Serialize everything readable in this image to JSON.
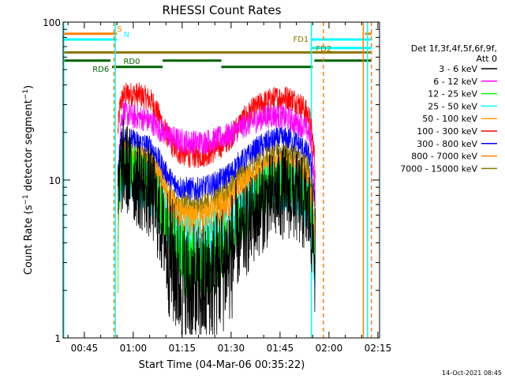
{
  "chart_data": {
    "type": "line",
    "title": "RHESSI Count Rates",
    "xlabel": "Start Time (04-Mar-06 00:35:22)",
    "ylabel": "Count Rate (s⁻¹ detector segment⁻¹)",
    "ylabel_main": "Count Rate (s",
    "ylabel_mid": " detector segment",
    "ylabel_end": ")",
    "ylabel_sup": "−1",
    "yscale": "log",
    "xlim": [
      38.5,
      135.5
    ],
    "ylim": [
      1,
      100
    ],
    "x_units": "minutes after 00:00 UT, 04-Mar-06",
    "x_ticks": [
      {
        "value": 45,
        "label": "00:45"
      },
      {
        "value": 60,
        "label": "01:00"
      },
      {
        "value": 75,
        "label": "01:15"
      },
      {
        "value": 90,
        "label": "01:30"
      },
      {
        "value": 105,
        "label": "01:45"
      },
      {
        "value": 120,
        "label": "02:00"
      },
      {
        "value": 135,
        "label": "02:15"
      }
    ],
    "y_ticks": [
      {
        "value": 1,
        "label": "1"
      },
      {
        "value": 10,
        "label": "10"
      },
      {
        "value": 100,
        "label": "100"
      }
    ],
    "legend_header": [
      "Det 1f,3f,4f,5f,6f,9f,",
      "Att 0"
    ],
    "legend_position": "right",
    "series": [
      {
        "name": "3 - 6 keV",
        "color": "#000000",
        "x": [
          55.3,
          56,
          57,
          58,
          60,
          62,
          64,
          66,
          68,
          70,
          72,
          74,
          76,
          78,
          80,
          82,
          84,
          86,
          88,
          90,
          92,
          94,
          96,
          98,
          100,
          102,
          104,
          106,
          108,
          110,
          112,
          114,
          115.8
        ],
        "values": [
          5.8,
          11,
          12.5,
          11.8,
          10.5,
          9.5,
          8.8,
          7.8,
          5.5,
          4,
          3,
          2.4,
          2.1,
          2,
          2,
          2.1,
          2.3,
          2.6,
          2.9,
          3.3,
          4.1,
          4.5,
          5.3,
          6.2,
          7,
          7.5,
          8,
          8.4,
          8.2,
          7.8,
          7,
          6,
          3.2
        ]
      },
      {
        "name": "6 - 12 keV",
        "color": "#ff00ff",
        "x": [
          55.3,
          56,
          57,
          58,
          60,
          62,
          64,
          66,
          68,
          70,
          72,
          74,
          76,
          78,
          80,
          82,
          84,
          86,
          88,
          90,
          92,
          94,
          96,
          98,
          100,
          102,
          104,
          106,
          108,
          110,
          112,
          114,
          115.8
        ],
        "values": [
          3.5,
          22,
          27,
          26,
          25,
          25,
          24,
          23,
          21,
          19.5,
          18.5,
          17.8,
          17.5,
          17.3,
          17.3,
          17.5,
          17.8,
          18.2,
          18.8,
          19.5,
          21,
          22,
          23,
          24,
          25,
          25.5,
          25.5,
          25,
          24,
          23,
          22,
          20,
          8
        ]
      },
      {
        "name": "12 - 25 keV",
        "color": "#00ff00",
        "x": [
          55.3,
          56,
          57,
          58,
          60,
          62,
          64,
          66,
          68,
          70,
          72,
          74,
          76,
          78,
          80,
          82,
          84,
          86,
          88,
          90,
          92,
          94,
          96,
          98,
          100,
          102,
          104,
          106,
          108,
          110,
          112,
          114,
          115.8
        ],
        "values": [
          3.2,
          12,
          13.5,
          12.8,
          11.7,
          10.8,
          10,
          9,
          7,
          5.2,
          4.1,
          3.4,
          3,
          2.9,
          2.9,
          3,
          3.2,
          3.5,
          3.9,
          4.4,
          5.3,
          5.8,
          6.6,
          7.6,
          8.5,
          9.1,
          9.6,
          10,
          9.8,
          9.4,
          8.5,
          7.5,
          3.5
        ]
      },
      {
        "name": "25 - 50 keV",
        "color": "#00ffff",
        "x": [
          55.3,
          56,
          57,
          58,
          60,
          62,
          64,
          66,
          68,
          70,
          72,
          74,
          76,
          78,
          80,
          82,
          84,
          86,
          88,
          90,
          92,
          94,
          96,
          98,
          100,
          102,
          104,
          106,
          108,
          110,
          112,
          114,
          115.8
        ],
        "values": [
          3.4,
          9.5,
          11.5,
          11,
          10.2,
          9.6,
          9,
          8.3,
          6.8,
          5.6,
          4.5,
          3.9,
          3.6,
          3.5,
          3.5,
          3.6,
          3.8,
          4.1,
          4.5,
          5,
          5.8,
          6.2,
          7,
          7.8,
          8.4,
          8.8,
          9.1,
          9.2,
          9,
          8.5,
          7.6,
          6.5,
          2.3
        ]
      },
      {
        "name": "50 - 100 keV",
        "color": "#ffa000",
        "x": [
          55.3,
          56,
          57,
          58,
          60,
          62,
          64,
          66,
          68,
          70,
          72,
          74,
          76,
          78,
          80,
          82,
          84,
          86,
          88,
          90,
          92,
          94,
          96,
          98,
          100,
          102,
          104,
          106,
          108,
          110,
          112,
          114,
          115.8
        ],
        "values": [
          6,
          13,
          15.5,
          15,
          14.5,
          14,
          13.5,
          12.5,
          10.5,
          8.7,
          7.3,
          6.5,
          6.1,
          5.9,
          5.9,
          6.1,
          6.4,
          6.8,
          7.3,
          7.9,
          9,
          9.5,
          10.3,
          11.2,
          11.8,
          12.3,
          12.6,
          12.7,
          12.4,
          11.8,
          10.8,
          9.5,
          4.5
        ]
      },
      {
        "name": "100 - 300 keV",
        "color": "#ff0000",
        "x": [
          55.3,
          56,
          57,
          58,
          60,
          62,
          64,
          66,
          68,
          70,
          72,
          74,
          76,
          78,
          80,
          82,
          84,
          86,
          88,
          90,
          92,
          94,
          96,
          98,
          100,
          102,
          104,
          106,
          108,
          110,
          112,
          114,
          115.8
        ],
        "values": [
          20,
          30,
          34,
          35,
          35,
          34.5,
          33,
          31,
          25,
          20,
          16.5,
          15,
          14.5,
          14.2,
          14.2,
          14.5,
          15,
          16,
          17.2,
          18.8,
          22,
          24.5,
          27,
          29,
          31,
          32,
          33,
          33.5,
          33,
          31.5,
          29,
          25,
          12
        ]
      },
      {
        "name": "300 - 800 keV",
        "color": "#0000ff",
        "x": [
          55.3,
          56,
          57,
          58,
          60,
          62,
          64,
          66,
          68,
          70,
          72,
          74,
          76,
          78,
          80,
          82,
          84,
          86,
          88,
          90,
          92,
          94,
          96,
          98,
          100,
          102,
          104,
          106,
          108,
          110,
          112,
          114,
          115.8
        ],
        "values": [
          10,
          17,
          18.5,
          18,
          17.5,
          17,
          16.5,
          15.5,
          13,
          11,
          9.6,
          9,
          8.8,
          8.7,
          8.7,
          8.9,
          9.2,
          9.7,
          10.3,
          11,
          12.5,
          13.3,
          14.5,
          15.8,
          16.8,
          17.5,
          18,
          18.2,
          18,
          17.2,
          15.8,
          14,
          6
        ]
      },
      {
        "name": "800 - 7000 keV",
        "color": "#ff7f00",
        "x": [
          55.3,
          56,
          57,
          58,
          60,
          62,
          64,
          66,
          68,
          70,
          72,
          74,
          76,
          78,
          80,
          82,
          84,
          86,
          88,
          90,
          92,
          94,
          96,
          98,
          100,
          102,
          104,
          106,
          108,
          110,
          112,
          114,
          115.8
        ],
        "values": [
          5,
          10,
          12,
          11.8,
          11.2,
          10.7,
          10.2,
          9.6,
          8.2,
          6.7,
          5.8,
          5.3,
          5.1,
          5,
          5,
          5.1,
          5.4,
          5.8,
          6.3,
          6.9,
          8,
          8.5,
          9.3,
          10.2,
          11,
          11.6,
          12,
          12.2,
          12,
          11.5,
          10.5,
          9.3,
          4
        ]
      },
      {
        "name": "7000 - 15000 keV",
        "color": "#8b7500",
        "x": [
          55.3,
          56,
          57,
          58,
          60,
          62,
          64,
          66,
          68,
          70,
          72,
          74,
          76,
          78,
          80,
          82,
          84,
          86,
          88,
          90,
          92,
          94,
          96,
          98,
          100,
          102,
          104,
          106,
          108,
          110,
          112,
          114,
          115.8
        ],
        "values": [
          6.5,
          13,
          14.5,
          14,
          13.5,
          13,
          12.5,
          11.7,
          10,
          8.5,
          7.5,
          7,
          6.8,
          6.8,
          6.8,
          6.9,
          7.2,
          7.6,
          8.1,
          8.8,
          10,
          10.7,
          11.5,
          12.5,
          13.4,
          14,
          14.4,
          14.6,
          14.4,
          13.8,
          12.7,
          11.2,
          5.5
        ]
      }
    ],
    "annotations": [
      {
        "text": "S",
        "x": 55,
        "y_frac": 0.963,
        "color": "#ff7f00"
      },
      {
        "text": "N",
        "x": 57,
        "y_frac": 0.945,
        "color": "#00ffff"
      },
      {
        "text": "FD1",
        "x": 109,
        "y_frac": 0.93,
        "color": "#8b7500"
      },
      {
        "text": "FD2",
        "x": 116,
        "y_frac": 0.9,
        "color": "#8b7500"
      },
      {
        "text": "RD0",
        "x": 57,
        "y_frac": 0.86,
        "color": "#006400"
      },
      {
        "text": "RD6",
        "x": 47.5,
        "y_frac": 0.835,
        "color": "#006400"
      }
    ],
    "vertical_markers": [
      {
        "x": 38.7,
        "color": "#00ffff",
        "style": "solid"
      },
      {
        "x": 54.1,
        "color": "#ff7f00",
        "style": "dashed"
      },
      {
        "x": 54.5,
        "color": "#00ffff",
        "style": "solid"
      },
      {
        "x": 114.6,
        "color": "#00ffff",
        "style": "solid"
      },
      {
        "x": 118.3,
        "color": "#ff7f00",
        "style": "dashed"
      },
      {
        "x": 130.5,
        "color": "#ff7f00",
        "style": "solid"
      },
      {
        "x": 131.8,
        "color": "#00ffff",
        "style": "solid"
      },
      {
        "x": 133.0,
        "color": "#ff7f00",
        "style": "dashed"
      }
    ],
    "flag_bars": [
      {
        "color": "#ff7f00",
        "y_frac": 0.963,
        "segments": [
          [
            38.5,
            55
          ],
          [
            131,
            133
          ]
        ]
      },
      {
        "color": "#00ffff",
        "y_frac": 0.945,
        "segments": [
          [
            38.5,
            55
          ],
          [
            114.6,
            133
          ]
        ]
      },
      {
        "color": "#00ffff",
        "y_frac": 0.918,
        "segments": [
          [
            114.6,
            133
          ]
        ]
      },
      {
        "color": "#8b7500",
        "y_frac": 0.904,
        "segments": [
          [
            38.5,
            133
          ]
        ]
      },
      {
        "color": "#006400",
        "y_frac": 0.878,
        "segments": [
          [
            38.5,
            53
          ],
          [
            69,
            87
          ],
          [
            115.5,
            133
          ]
        ]
      },
      {
        "color": "#006400",
        "y_frac": 0.858,
        "segments": [
          [
            53.5,
            69
          ],
          [
            87,
            115
          ]
        ]
      }
    ]
  },
  "footer": {
    "timestamp": "14-Oct-2021 08:45"
  }
}
